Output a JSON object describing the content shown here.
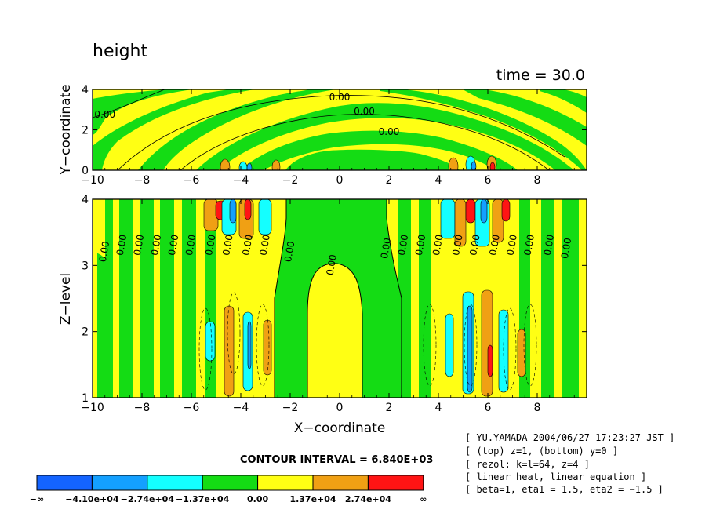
{
  "chart_data": {
    "title": "height",
    "time_label": "time = 30.0",
    "contour_interval": "CONTOUR INTERVAL = 6.840E+03",
    "colors": [
      "#1464ff",
      "#14a0ff",
      "#14ffff",
      "#14dc14",
      "#ffff14",
      "#f0a014",
      "#ff1414"
    ],
    "colorbar_labels": [
      "−∞",
      "−4.10e+04",
      "−2.74e+04",
      "−1.37e+04",
      "0.00",
      "1.37e+04",
      "2.74e+04",
      "∞"
    ],
    "panels": [
      {
        "type": "heatmap",
        "ylabel": "Y−coordinate",
        "xlabel": "",
        "xlim": [
          -10,
          10
        ],
        "ylim": [
          0,
          4
        ],
        "xticks": [
          -10,
          -8,
          -6,
          -4,
          -2,
          0,
          2,
          4,
          6,
          8
        ],
        "xtick_labels": [
          "−10",
          "−8",
          "−6",
          "−4",
          "−2",
          "0",
          "2",
          "4",
          "6",
          "8"
        ],
        "yticks": [
          0,
          2,
          4
        ],
        "ytick_labels": [
          "0",
          "2",
          "4"
        ],
        "contour_labels": [
          {
            "x": -9.5,
            "y": 2.6,
            "text": "0.00"
          },
          {
            "x": 0.0,
            "y": 3.45,
            "text": "0.00"
          },
          {
            "x": 1.0,
            "y": 2.75,
            "text": "0.00"
          },
          {
            "x": 2.0,
            "y": 1.75,
            "text": "0.00"
          }
        ]
      },
      {
        "type": "heatmap",
        "ylabel": "Z−level",
        "xlabel": "X−coordinate",
        "xlim": [
          -10,
          10
        ],
        "ylim": [
          1,
          4
        ],
        "xticks": [
          -10,
          -8,
          -6,
          -4,
          -2,
          0,
          2,
          4,
          6,
          8
        ],
        "xtick_labels": [
          "−10",
          "−8",
          "−6",
          "−4",
          "−2",
          "0",
          "2",
          "4",
          "6",
          "8"
        ],
        "yticks": [
          1,
          2,
          3,
          4
        ],
        "ytick_labels": [
          "1",
          "2",
          "3",
          "4"
        ],
        "contour_labels": [
          {
            "x": -9.4,
            "y": 3.2,
            "text": "0.00"
          },
          {
            "x": -8.7,
            "y": 3.3,
            "text": "0.00"
          },
          {
            "x": -8.0,
            "y": 3.3,
            "text": "0.00"
          },
          {
            "x": -7.3,
            "y": 3.3,
            "text": "0.00"
          },
          {
            "x": -6.6,
            "y": 3.3,
            "text": "0.00"
          },
          {
            "x": -5.9,
            "y": 3.3,
            "text": "0.00"
          },
          {
            "x": -5.1,
            "y": 3.3,
            "text": "0.00"
          },
          {
            "x": -4.4,
            "y": 3.3,
            "text": "0.00"
          },
          {
            "x": -3.6,
            "y": 3.3,
            "text": "0.00"
          },
          {
            "x": -2.9,
            "y": 3.3,
            "text": "0.00"
          },
          {
            "x": -1.9,
            "y": 3.2,
            "text": "0.00"
          },
          {
            "x": -0.2,
            "y": 3.0,
            "text": "0.00"
          },
          {
            "x": 2.0,
            "y": 3.25,
            "text": "0.00"
          },
          {
            "x": 2.7,
            "y": 3.3,
            "text": "0.00"
          },
          {
            "x": 3.4,
            "y": 3.3,
            "text": "0.00"
          },
          {
            "x": 4.1,
            "y": 3.3,
            "text": "0.00"
          },
          {
            "x": 4.9,
            "y": 3.3,
            "text": "0.00"
          },
          {
            "x": 5.6,
            "y": 3.3,
            "text": "0.00"
          },
          {
            "x": 6.4,
            "y": 3.3,
            "text": "0.00"
          },
          {
            "x": 7.1,
            "y": 3.3,
            "text": "0.00"
          },
          {
            "x": 7.8,
            "y": 3.3,
            "text": "0.00"
          },
          {
            "x": 8.6,
            "y": 3.3,
            "text": "0.00"
          },
          {
            "x": 9.3,
            "y": 3.25,
            "text": "0.00"
          }
        ]
      }
    ]
  },
  "info_lines": [
    "[ YU.YAMADA 2004/06/27 17:23:27 JST ]",
    "[ (top) z=1, (bottom) y=0 ]",
    "[ rezol: k=l=64, z=4 ]",
    "[ linear_heat, linear_equation ]",
    "[ beta=1, eta1 = 1.5, eta2 = −1.5 ]"
  ]
}
